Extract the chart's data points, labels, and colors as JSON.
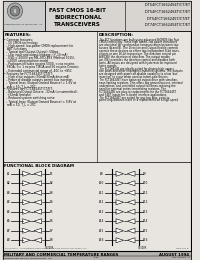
{
  "bg_color": "#e8e5e0",
  "white": "#ffffff",
  "black": "#000000",
  "dark_gray": "#888888",
  "header": {
    "center_title": "FAST CMOS 16-BIT\nBIDIRECTIONAL\nTRANSCEIVERS",
    "right_lines": [
      "IDT54FCT166245ET/CT/ET",
      "IDT54FCT166245ET/CT/ET",
      "IDT54FCT166245T/CT/ET",
      "IDT74FCT166245ET/CT/ET"
    ]
  },
  "features_title": "FEATURES:",
  "features_lines": [
    "Common features:",
    " 5V CMOS technology",
    " High-speed, low-power CMOS replacement for",
    "   ABT functions",
    " Typical tpd (Output-Output): 5Gbps",
    " Low input and output leakage: (+-10 mA)",
    " ESD > 2000V per MIL-STD-883 (Method 3015),",
    "   >200V using machine model",
    " Packages includes no pins 5000, <=so no pins",
    "   FBGA, <= 1 no pins T-BGA and 56 no pins Ceramic",
    " Extended commercial range of -40C to +85C",
    "Features for FCT166245T/CT/ET:",
    " High drive outputs (30mA/30mA drive mA)",
    " Power of disable outputs permit bus insertion",
    " Typical Imax (Output Ground Bounce) = 1.6V at",
    "   mA = 50, T_L = 25C",
    "Features for FCT166245T/CT/ET:",
    " Balanced Output Drivers: -32mA (uncommitted),",
    "   +32mA (tristate)",
    " Reduced system switching noise",
    " Typical Imax (Output Ground Bounce) = 0.8V at",
    "   mA = 50, T_L = 25C"
  ],
  "desc_title": "DESCRIPTION:",
  "desc_lines": [
    "The FCT functions are built using advanced BiCMOS-like Fast",
    "CMOS technology. These high speed, low power transistors",
    "are also ideal for synchronous communication between two",
    "busses (A and B). The Direction and Output Enable controls",
    "operate these devices as either two independent 8-bit trans-",
    "ceivers or one 16-bit transceiver. The direction control pin",
    "A/B(DIR) the direction of data flow. The output enable",
    "pin (OE) overrides the direction control and disables both",
    "ports. All inputs are designed with hysteresis for improved",
    "noise margin.",
    "The FCT166245 are ideally suited for driving high capaci-",
    "tive loads and other impedance-matched systems. The outputs",
    "are designed with power-off-disable capability to allow 'bus",
    "insertion' to occur when used as totem-pole drivers.",
    "The FCT166245T have balanced output drive with simultan-",
    "eous limiting resistors. This offers low ground bounce, minimal",
    "undershoot, and controlled output fall times-reducing the",
    "need for external series terminating resistors. The",
    "FCT166245E are plug-in replacements for the FCT166245T",
    "and 54ET inputs for in-board interface applications.",
    "The FCT166245T are suited for any bus bias, point-to-",
    "point long-distance trace or a replacement on a high-speed"
  ],
  "fbd_title": "FUNCTIONAL BLOCK DIAGRAM",
  "footer_left": "MILITARY AND COMMERCIAL TEMPERATURE RANGES",
  "footer_right": "AUGUST 1994",
  "footer_bottom_left": "INTEGRATED DEVICE TECHNOLOGY, INC.",
  "footer_bottom_center": "5-14",
  "footer_bottom_right": "IDC 000001   5"
}
